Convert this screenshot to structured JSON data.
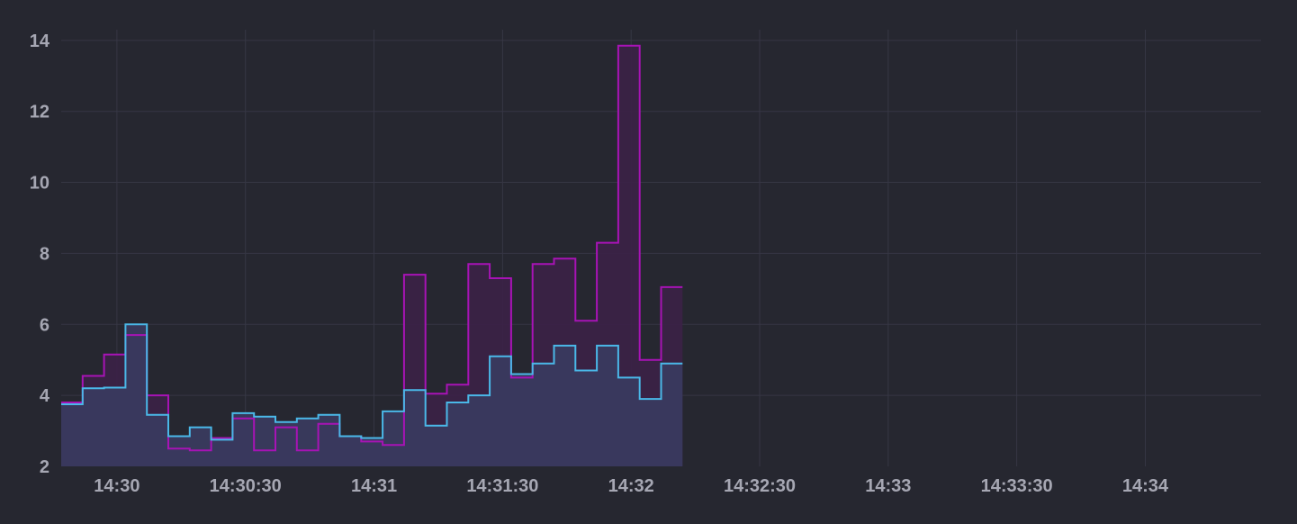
{
  "chart_data": {
    "type": "area",
    "step": true,
    "grid": true,
    "legend": "none",
    "x_type": "time",
    "x_start": "14:29:47",
    "x_step_seconds": 5,
    "xlim": [
      "14:29:47",
      "14:34:27"
    ],
    "ylim": [
      2,
      14.3
    ],
    "x_ticks": [
      {
        "value": "14:30:00",
        "label": "14:30"
      },
      {
        "value": "14:30:30",
        "label": "14:30:30"
      },
      {
        "value": "14:31:00",
        "label": "14:31"
      },
      {
        "value": "14:31:30",
        "label": "14:31:30"
      },
      {
        "value": "14:32:00",
        "label": "14:32"
      },
      {
        "value": "14:32:30",
        "label": "14:32:30"
      },
      {
        "value": "14:33:00",
        "label": "14:33"
      },
      {
        "value": "14:33:30",
        "label": "14:33:30"
      },
      {
        "value": "14:34:00",
        "label": "14:34"
      }
    ],
    "y_ticks": [
      {
        "value": 2,
        "label": "2"
      },
      {
        "value": 4,
        "label": "4"
      },
      {
        "value": 6,
        "label": "6"
      },
      {
        "value": 8,
        "label": "8"
      },
      {
        "value": 10,
        "label": "10"
      },
      {
        "value": 12,
        "label": "12"
      },
      {
        "value": 14,
        "label": "14"
      }
    ],
    "series": [
      {
        "color": "#a713b5",
        "fill": "#3b2246",
        "values": [
          3.8,
          4.55,
          5.15,
          5.7,
          4.0,
          2.5,
          2.45,
          2.8,
          3.35,
          2.45,
          3.1,
          2.45,
          3.2,
          2.85,
          2.7,
          2.6,
          7.4,
          4.05,
          4.3,
          7.7,
          7.3,
          4.5,
          7.7,
          7.85,
          6.1,
          8.3,
          13.85,
          5.0,
          7.05
        ]
      },
      {
        "color": "#4ab8e8",
        "fill": "#393b5f",
        "values": [
          3.75,
          4.2,
          4.22,
          6.0,
          3.45,
          2.85,
          3.1,
          2.75,
          3.5,
          3.4,
          3.25,
          3.35,
          3.45,
          2.85,
          2.8,
          3.55,
          4.15,
          3.15,
          3.8,
          4.0,
          5.1,
          4.6,
          4.9,
          5.4,
          4.7,
          5.4,
          4.5,
          3.9,
          4.9
        ]
      }
    ]
  }
}
